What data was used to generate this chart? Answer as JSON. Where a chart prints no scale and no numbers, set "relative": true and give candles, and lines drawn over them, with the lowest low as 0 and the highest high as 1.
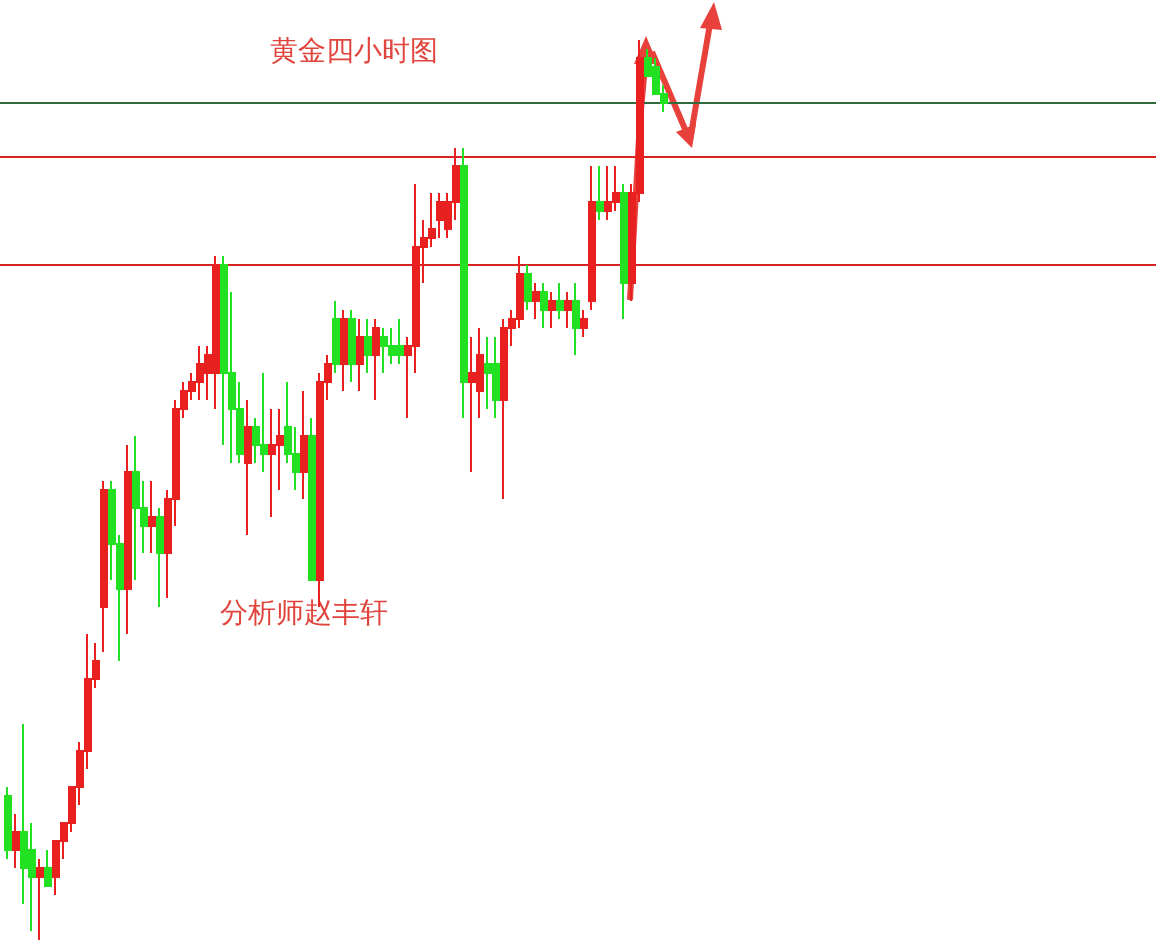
{
  "chart_data": {
    "type": "candlestick",
    "title": "黄金四小时图",
    "relative": true,
    "annotations": [
      "分析师赵丰轩"
    ],
    "colors": [
      "#22e022",
      "#e8201f",
      "#22e022",
      "#22e022",
      "#e8201f",
      "#22e022",
      "#e8201f",
      "#e8201f",
      "#e8201f",
      "#e8201f",
      "#e8201f",
      "#e8201f",
      "#e8201f",
      "#22e022",
      "#22e022",
      "#e8201f",
      "#22e022",
      "#22e022",
      "#e8201f",
      "#22e022",
      "#e8201f",
      "#e8201f",
      "#e8201f",
      "#e8201f",
      "#e8201f",
      "#e8201f",
      "#e8201f",
      "#22e022",
      "#22e022",
      "#22e022",
      "#e8201f",
      "#22e022",
      "#22e022",
      "#e8201f",
      "#e8201f",
      "#22e022",
      "#22e022",
      "#e8201f",
      "#22e022",
      "#e8201f",
      "#e8201f",
      "#22e022",
      "#e8201f",
      "#22e022",
      "#e8201f",
      "#22e022",
      "#e8201f",
      "#22e022",
      "#22e022",
      "#22e022",
      "#e8201f",
      "#e8201f",
      "#e8201f",
      "#e8201f",
      "#e8201f",
      "#e8201f",
      "#e8201f",
      "#22e022",
      "#e8201f",
      "#e8201f",
      "#22e022",
      "#22e022",
      "#e8201f",
      "#e8201f",
      "#e8201f",
      "#22e022",
      "#e8201f",
      "#22e022",
      "#e8201f",
      "#22e022",
      "#e8201f",
      "#22e022",
      "#e8201f",
      "#e8201f",
      "#22e022",
      "#e8201f",
      "#e8201f",
      "#22e022",
      "#e8201f",
      "#e8201f",
      "#22e022",
      "#22e022",
      "#22e022"
    ],
    "categories": [
      null,
      null,
      null,
      null,
      null,
      null,
      null,
      null,
      null,
      null,
      null,
      null,
      null,
      null,
      null,
      null,
      null,
      null,
      null,
      null,
      null,
      null,
      null,
      null,
      null,
      null,
      null,
      null,
      null,
      null,
      null,
      null,
      null,
      null,
      null,
      null,
      null,
      null,
      null,
      null,
      null,
      null,
      null,
      null,
      null,
      null,
      null,
      null,
      null,
      null,
      null,
      null,
      null,
      null,
      null,
      null,
      null,
      null,
      null,
      null,
      null,
      null,
      null,
      null,
      null,
      null,
      null,
      null,
      null,
      null,
      null,
      null,
      null,
      null,
      null,
      null,
      null,
      null,
      null,
      null,
      null,
      null,
      null
    ],
    "ohlc": [
      [
        0.16,
        0.17,
        0.09,
        0.1
      ],
      [
        0.1,
        0.14,
        0.08,
        0.12
      ],
      [
        0.12,
        0.24,
        0.04,
        0.08
      ],
      [
        0.1,
        0.13,
        0.01,
        0.07
      ],
      [
        0.07,
        0.09,
        0,
        0.08
      ],
      [
        0.08,
        0.1,
        0.06,
        0.06
      ],
      [
        0.07,
        0.11,
        0.05,
        0.11
      ],
      [
        0.11,
        0.13,
        0.09,
        0.13
      ],
      [
        0.13,
        0.17,
        0.12,
        0.17
      ],
      [
        0.17,
        0.22,
        0.15,
        0.21
      ],
      [
        0.21,
        0.34,
        0.19,
        0.29
      ],
      [
        0.29,
        0.33,
        0.28,
        0.31
      ],
      [
        0.37,
        0.51,
        0.32,
        0.5
      ],
      [
        0.5,
        0.51,
        0.4,
        0.44
      ],
      [
        0.44,
        0.45,
        0.31,
        0.39
      ],
      [
        0.39,
        0.55,
        0.34,
        0.52
      ],
      [
        0.52,
        0.56,
        0.4,
        0.48
      ],
      [
        0.48,
        0.51,
        0.43,
        0.46
      ],
      [
        0.46,
        0.51,
        0.43,
        0.47
      ],
      [
        0.47,
        0.48,
        0.37,
        0.43
      ],
      [
        0.43,
        0.5,
        0.38,
        0.49
      ],
      [
        0.49,
        0.6,
        0.46,
        0.59
      ],
      [
        0.59,
        0.62,
        0.58,
        0.61
      ],
      [
        0.61,
        0.63,
        0.6,
        0.62
      ],
      [
        0.62,
        0.66,
        0.6,
        0.64
      ],
      [
        0.63,
        0.66,
        0.6,
        0.65
      ],
      [
        0.63,
        0.76,
        0.59,
        0.75
      ],
      [
        0.75,
        0.76,
        0.55,
        0.63
      ],
      [
        0.63,
        0.72,
        0.53,
        0.59
      ],
      [
        0.59,
        0.62,
        0.53,
        0.54
      ],
      [
        0.53,
        0.6,
        0.45,
        0.57
      ],
      [
        0.57,
        0.58,
        0.53,
        0.55
      ],
      [
        0.55,
        0.63,
        0.52,
        0.54
      ],
      [
        0.54,
        0.59,
        0.47,
        0.55
      ],
      [
        0.55,
        0.59,
        0.5,
        0.56
      ],
      [
        0.57,
        0.62,
        0.53,
        0.54
      ],
      [
        0.54,
        0.57,
        0.5,
        0.52
      ],
      [
        0.52,
        0.61,
        0.49,
        0.56
      ],
      [
        0.56,
        0.58,
        0.4,
        0.4
      ],
      [
        0.4,
        0.63,
        0.37,
        0.62
      ],
      [
        0.62,
        0.65,
        0.6,
        0.64
      ],
      [
        0.69,
        0.71,
        0.63,
        0.64
      ],
      [
        0.64,
        0.7,
        0.61,
        0.69
      ],
      [
        0.69,
        0.7,
        0.62,
        0.64
      ],
      [
        0.64,
        0.69,
        0.61,
        0.67
      ],
      [
        0.67,
        0.69,
        0.63,
        0.65
      ],
      [
        0.65,
        0.69,
        0.6,
        0.68
      ],
      [
        0.67,
        0.68,
        0.63,
        0.66
      ],
      [
        0.66,
        0.68,
        0.64,
        0.65
      ],
      [
        0.66,
        0.69,
        0.64,
        0.65
      ],
      [
        0.65,
        0.67,
        0.58,
        0.66
      ],
      [
        0.66,
        0.84,
        0.63,
        0.77
      ],
      [
        0.77,
        0.8,
        0.73,
        0.78
      ],
      [
        0.78,
        0.83,
        0.77,
        0.79
      ],
      [
        0.8,
        0.83,
        0.78,
        0.82
      ],
      [
        0.79,
        0.83,
        0.78,
        0.82
      ],
      [
        0.82,
        0.88,
        0.8,
        0.86
      ],
      [
        0.86,
        0.88,
        0.58,
        0.62
      ],
      [
        0.62,
        0.67,
        0.52,
        0.63
      ],
      [
        0.61,
        0.68,
        0.58,
        0.65
      ],
      [
        0.64,
        0.67,
        0.59,
        0.63
      ],
      [
        0.64,
        0.67,
        0.58,
        0.6
      ],
      [
        0.6,
        0.69,
        0.49,
        0.68
      ],
      [
        0.68,
        0.7,
        0.66,
        0.69
      ],
      [
        0.69,
        0.76,
        0.68,
        0.74
      ],
      [
        0.74,
        0.75,
        0.7,
        0.71
      ],
      [
        0.71,
        0.73,
        0.69,
        0.72
      ],
      [
        0.72,
        0.73,
        0.68,
        0.7
      ],
      [
        0.7,
        0.72,
        0.68,
        0.71
      ],
      [
        0.71,
        0.73,
        0.69,
        0.7
      ],
      [
        0.7,
        0.72,
        0.68,
        0.71
      ],
      [
        0.71,
        0.73,
        0.65,
        0.68
      ],
      [
        0.68,
        0.7,
        0.67,
        0.69
      ],
      [
        0.71,
        0.86,
        0.7,
        0.82
      ],
      [
        0.82,
        0.86,
        0.8,
        0.81
      ],
      [
        0.81,
        0.86,
        0.8,
        0.82
      ],
      [
        0.82,
        0.86,
        0.81,
        0.83
      ],
      [
        0.83,
        0.84,
        0.69,
        0.73
      ],
      [
        0.73,
        0.84,
        0.71,
        0.83
      ],
      [
        0.83,
        1,
        0.82,
        0.98
      ],
      [
        0.98,
        0.99,
        0.96,
        0.96
      ],
      [
        0.97,
        0.98,
        0.94,
        0.94
      ],
      [
        0.94,
        0.95,
        0.92,
        0.93
      ]
    ],
    "ref_lines": [
      {
        "axis": "y",
        "value": 0.93,
        "label": null,
        "color": "#2f6b3c"
      },
      {
        "axis": "y",
        "value": 0.87,
        "label": null,
        "color": "#d42424"
      },
      {
        "axis": "y",
        "value": 0.75,
        "label": null,
        "color": "#d42424"
      }
    ]
  }
}
